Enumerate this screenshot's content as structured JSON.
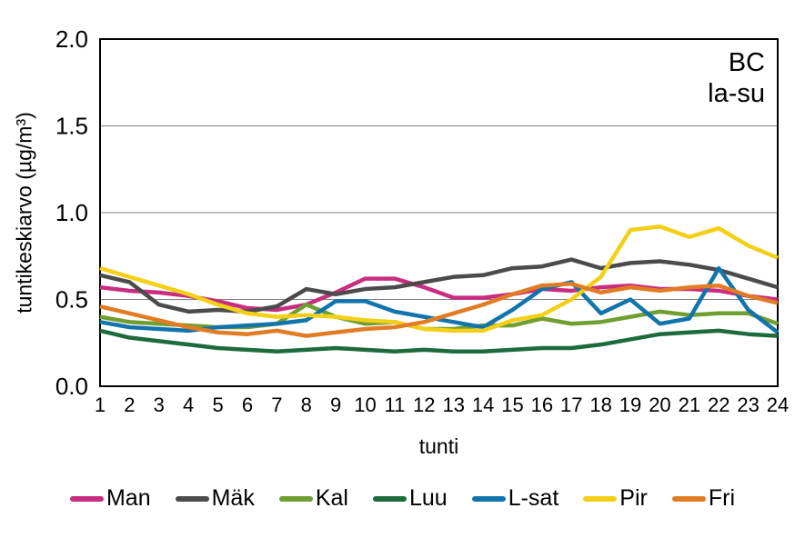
{
  "chart_data": {
    "type": "line",
    "annotation": [
      "BC",
      "la-su"
    ],
    "xlabel": "tunti",
    "ylabel": "tuntikeskiarvo (µg/m³)",
    "x": [
      1,
      2,
      3,
      4,
      5,
      6,
      7,
      8,
      9,
      10,
      11,
      12,
      13,
      14,
      15,
      16,
      17,
      18,
      19,
      20,
      21,
      22,
      23,
      24
    ],
    "ylim": [
      0,
      2.0
    ],
    "yticks": [
      0.0,
      0.5,
      1.0,
      1.5,
      2.0
    ],
    "grid": "horizontal",
    "grid_color": "#7f7f7f",
    "frame_color": "#000000",
    "legend_position": "bottom",
    "series": [
      {
        "name": "Man",
        "color": "#c92d80",
        "values": [
          0.57,
          0.55,
          0.54,
          0.52,
          0.49,
          0.45,
          0.44,
          0.47,
          0.54,
          0.62,
          0.62,
          0.57,
          0.51,
          0.51,
          0.53,
          0.56,
          0.55,
          0.57,
          0.58,
          0.56,
          0.56,
          0.55,
          0.52,
          0.5
        ]
      },
      {
        "name": "Mäk",
        "color": "#4b4b4b",
        "values": [
          0.64,
          0.6,
          0.47,
          0.43,
          0.44,
          0.43,
          0.46,
          0.56,
          0.53,
          0.56,
          0.57,
          0.6,
          0.63,
          0.64,
          0.68,
          0.69,
          0.73,
          0.68,
          0.71,
          0.72,
          0.7,
          0.67,
          0.62,
          0.57
        ]
      },
      {
        "name": "Kal",
        "color": "#6f9e31",
        "values": [
          0.4,
          0.37,
          0.36,
          0.35,
          0.34,
          0.34,
          0.36,
          0.47,
          0.4,
          0.36,
          0.37,
          0.33,
          0.33,
          0.35,
          0.35,
          0.39,
          0.36,
          0.37,
          0.4,
          0.43,
          0.41,
          0.42,
          0.42,
          0.36
        ]
      },
      {
        "name": "Luu",
        "color": "#1d6a3d",
        "values": [
          0.32,
          0.28,
          0.26,
          0.24,
          0.22,
          0.21,
          0.2,
          0.21,
          0.22,
          0.21,
          0.2,
          0.21,
          0.2,
          0.2,
          0.21,
          0.22,
          0.22,
          0.24,
          0.27,
          0.3,
          0.31,
          0.32,
          0.3,
          0.29
        ]
      },
      {
        "name": "L-sat",
        "color": "#1274ac",
        "values": [
          0.37,
          0.34,
          0.33,
          0.32,
          0.34,
          0.35,
          0.36,
          0.38,
          0.49,
          0.49,
          0.43,
          0.4,
          0.37,
          0.34,
          0.44,
          0.56,
          0.6,
          0.42,
          0.5,
          0.36,
          0.39,
          0.68,
          0.44,
          0.31
        ]
      },
      {
        "name": "Pir",
        "color": "#f3cf16",
        "values": [
          0.68,
          0.63,
          0.58,
          0.53,
          0.47,
          0.42,
          0.4,
          0.41,
          0.4,
          0.38,
          0.37,
          0.33,
          0.32,
          0.32,
          0.38,
          0.41,
          0.5,
          0.63,
          0.9,
          0.92,
          0.86,
          0.91,
          0.81,
          0.74
        ]
      },
      {
        "name": "Fri",
        "color": "#e17c25",
        "values": [
          0.46,
          0.42,
          0.38,
          0.34,
          0.31,
          0.3,
          0.32,
          0.29,
          0.31,
          0.33,
          0.34,
          0.37,
          0.42,
          0.47,
          0.53,
          0.58,
          0.59,
          0.54,
          0.57,
          0.55,
          0.57,
          0.58,
          0.52,
          0.48
        ]
      }
    ]
  }
}
